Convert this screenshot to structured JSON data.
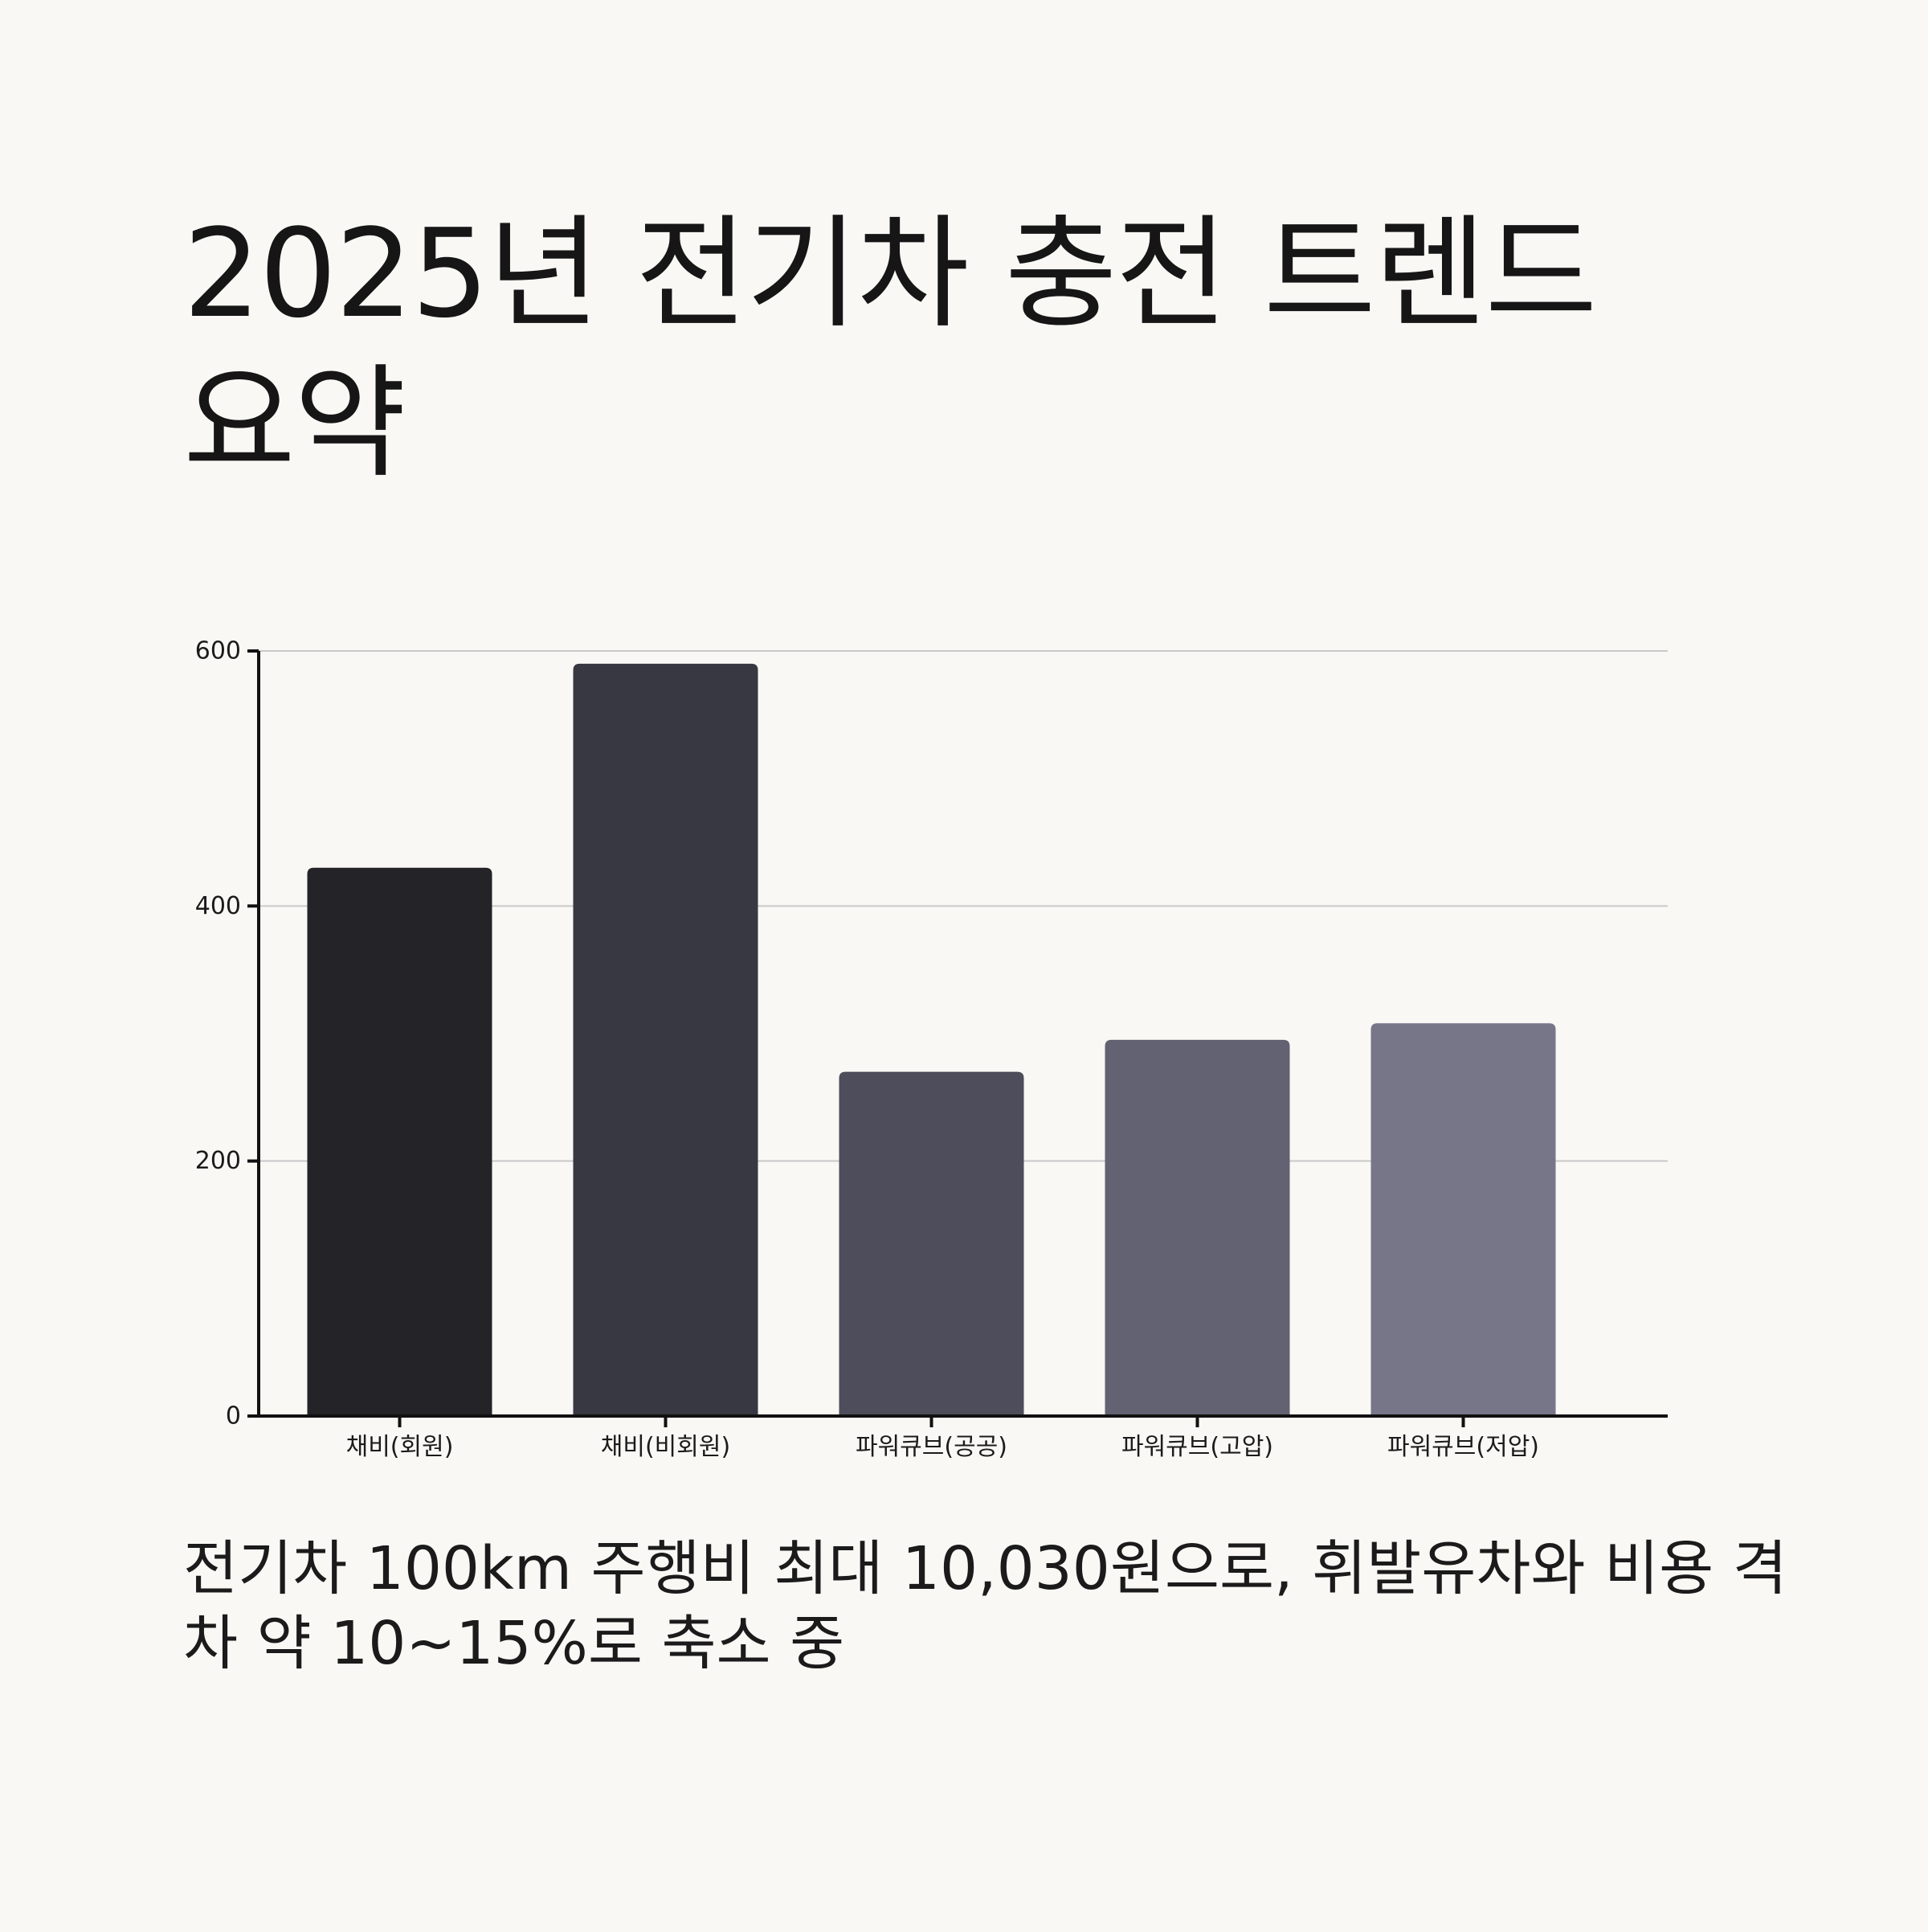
{
  "title": "2025년 전기차 충전 트렌드 요약",
  "caption": "전기차 100km 주행비 최대 10,030원으로, 휘발유차와 비용 격차 약 10~15%로 축소 중",
  "colors": {
    "background": "#f9f8f4",
    "bars": [
      "#232328",
      "#383843",
      "#4d4d5b",
      "#626272",
      "#777689"
    ],
    "axis": "#111111",
    "grid": "#c9c9c9"
  },
  "chart_data": {
    "type": "bar",
    "categories": [
      "채비(회원)",
      "채비(비회원)",
      "파워큐브(공공)",
      "파워큐브(고압)",
      "파워큐브(저압)"
    ],
    "values": [
      430,
      590,
      270,
      295,
      308
    ],
    "ylim": [
      0,
      600
    ],
    "yticks": [
      0,
      200,
      400,
      600
    ],
    "grid": true,
    "xlabel": "",
    "ylabel": ""
  }
}
